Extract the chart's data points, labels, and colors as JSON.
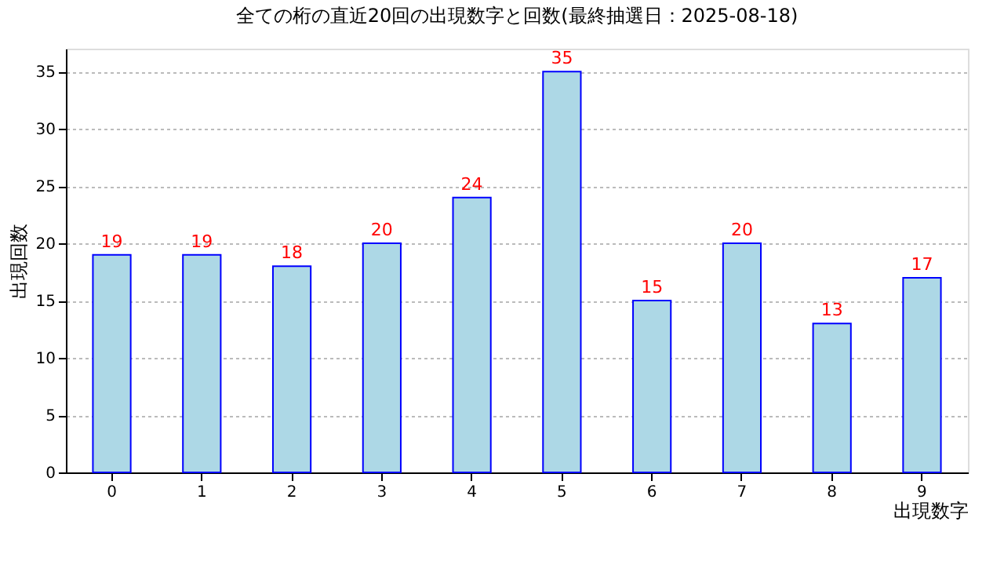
{
  "chart_data": {
    "type": "bar",
    "title": "全ての桁の直近20回の出現数字と回数(最終抽選日：2025-08-18)",
    "xlabel": "出現数字",
    "ylabel": "出現回数",
    "categories": [
      "0",
      "1",
      "2",
      "3",
      "4",
      "5",
      "6",
      "7",
      "8",
      "9"
    ],
    "series": [
      {
        "color": "#add8e6",
        "values": [
          19,
          19,
          18,
          20,
          24,
          35,
          15,
          20,
          13,
          17
        ]
      }
    ],
    "ylim": [
      0,
      37
    ],
    "yticks": [
      0,
      5,
      10,
      15,
      20,
      25,
      30,
      35
    ],
    "grid": "y",
    "data_labels": true
  }
}
